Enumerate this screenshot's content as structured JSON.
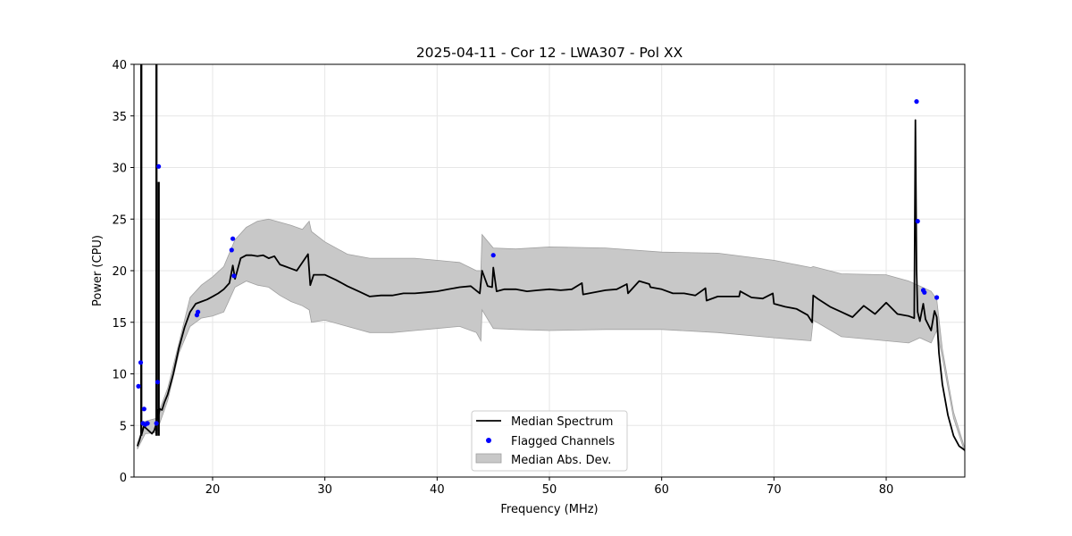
{
  "chart_data": {
    "type": "line",
    "title": "2025-04-11 - Cor 12 - LWA307 - Pol XX",
    "xlabel": "Frequency (MHz)",
    "ylabel": "Power (CPU)",
    "xlim": [
      13.0,
      87.0
    ],
    "ylim": [
      0,
      40
    ],
    "xticks": [
      20,
      30,
      40,
      50,
      60,
      70,
      80
    ],
    "yticks": [
      0,
      5,
      10,
      15,
      20,
      25,
      30,
      35,
      40
    ],
    "grid": true,
    "legend_position": "bottom-center",
    "legend": [
      {
        "label": "Median Spectrum",
        "kind": "line"
      },
      {
        "label": "Flagged Channels",
        "kind": "marker"
      },
      {
        "label": "Median Abs. Dev.",
        "kind": "patch"
      }
    ],
    "colors": {
      "line": "#000000",
      "flagged": "#0000ff",
      "band": "#c8c8c8",
      "band_edge": "#a0a0a0",
      "grid": "#e6e6e6"
    },
    "median_spectrum": {
      "x": [
        13.3,
        13.5,
        13.6,
        13.7,
        13.8,
        13.9,
        14.0,
        14.2,
        14.4,
        14.6,
        14.8,
        15.0,
        15.1,
        15.2,
        15.3,
        15.5,
        15.7,
        16.0,
        16.5,
        17.0,
        17.5,
        18.0,
        18.5,
        19.0,
        19.5,
        20.0,
        20.5,
        21.0,
        21.5,
        21.8,
        22.0,
        22.5,
        23.0,
        23.5,
        24.0,
        24.5,
        25.0,
        25.5,
        26.0,
        26.5,
        27.0,
        27.5,
        28.0,
        28.5,
        28.7,
        29.0,
        30.0,
        31.0,
        32.0,
        33.0,
        34.0,
        35.0,
        36.0,
        37.0,
        38.0,
        39.0,
        40.0,
        41.0,
        42.0,
        43.0,
        43.8,
        44.0,
        44.5,
        44.9,
        45.0,
        45.3,
        46.0,
        47.0,
        48.0,
        49.0,
        50.0,
        51.0,
        52.0,
        52.9,
        53.0,
        54.0,
        55.0,
        56.0,
        56.9,
        57.0,
        58.0,
        58.9,
        59.0,
        60.0,
        61.0,
        62.0,
        63.0,
        63.9,
        64.0,
        65.0,
        66.0,
        66.9,
        67.0,
        68.0,
        69.0,
        69.9,
        70.0,
        71.0,
        72.0,
        73.0,
        73.4,
        73.5,
        74.0,
        75.0,
        76.0,
        77.0,
        78.0,
        79.0,
        80.0,
        81.0,
        82.0,
        82.5,
        82.6,
        82.7,
        82.8,
        83.0,
        83.3,
        83.5,
        84.0,
        84.3,
        84.5,
        84.7,
        85.0,
        85.5,
        86.0,
        86.5,
        87.0
      ],
      "y": [
        3.0,
        3.6,
        4.0,
        4.2,
        4.6,
        5.0,
        4.8,
        4.6,
        4.4,
        4.2,
        4.5,
        5.2,
        6.5,
        6.0,
        6.6,
        6.5,
        7.2,
        8.0,
        10.0,
        12.5,
        14.5,
        16.0,
        16.8,
        17.0,
        17.2,
        17.5,
        17.8,
        18.2,
        18.8,
        20.5,
        19.2,
        21.2,
        21.5,
        21.5,
        21.4,
        21.5,
        21.2,
        21.4,
        20.6,
        20.4,
        20.2,
        20.0,
        20.8,
        21.6,
        18.6,
        19.6,
        19.6,
        19.1,
        18.5,
        18.0,
        17.5,
        17.6,
        17.6,
        17.8,
        17.8,
        17.9,
        18.0,
        18.2,
        18.4,
        18.5,
        17.8,
        20.0,
        18.5,
        18.4,
        20.3,
        18.0,
        18.2,
        18.2,
        18.0,
        18.1,
        18.2,
        18.1,
        18.2,
        18.8,
        17.7,
        17.9,
        18.1,
        18.2,
        18.7,
        17.8,
        19.0,
        18.7,
        18.4,
        18.2,
        17.8,
        17.8,
        17.6,
        18.3,
        17.1,
        17.5,
        17.5,
        17.5,
        18.0,
        17.4,
        17.3,
        17.8,
        16.8,
        16.5,
        16.3,
        15.7,
        15.0,
        17.6,
        17.2,
        16.5,
        16.0,
        15.5,
        16.6,
        15.8,
        16.9,
        15.8,
        15.6,
        15.4,
        34.6,
        20.0,
        16.0,
        15.1,
        16.8,
        15.3,
        14.2,
        16.1,
        15.5,
        12.0,
        9.0,
        6.0,
        4.0,
        3.0,
        2.6
      ]
    },
    "mad_upper": {
      "x": [
        13.3,
        14.0,
        15.0,
        16.0,
        17.0,
        18.0,
        19.0,
        20.0,
        21.0,
        22.0,
        23.0,
        24.0,
        25.0,
        26.0,
        27.0,
        28.0,
        28.6,
        28.8,
        30.0,
        32.0,
        34.0,
        36.0,
        38.0,
        40.0,
        42.0,
        43.5,
        43.9,
        44.0,
        45.0,
        47.0,
        50.0,
        55.0,
        60.0,
        65.0,
        70.0,
        73.3,
        73.5,
        76.0,
        80.0,
        82.0,
        83.0,
        84.0,
        84.5,
        85.0,
        86.0,
        87.0
      ],
      "y": [
        3.3,
        5.4,
        5.7,
        8.6,
        13.0,
        17.4,
        18.6,
        19.4,
        20.4,
        23.0,
        24.2,
        24.8,
        25.0,
        24.7,
        24.4,
        24.0,
        24.8,
        23.8,
        22.8,
        21.6,
        21.2,
        21.2,
        21.2,
        21.0,
        20.8,
        20.0,
        20.0,
        23.5,
        22.2,
        22.1,
        22.3,
        22.2,
        21.8,
        21.7,
        21.0,
        20.3,
        20.4,
        19.7,
        19.6,
        19.0,
        18.5,
        18.0,
        17.2,
        12.4,
        6.3,
        2.8
      ]
    },
    "mad_lower": {
      "x": [
        13.3,
        14.0,
        15.0,
        16.0,
        17.0,
        18.0,
        19.0,
        20.0,
        21.0,
        22.0,
        23.0,
        24.0,
        25.0,
        26.0,
        27.0,
        28.0,
        28.6,
        28.8,
        30.0,
        32.0,
        34.0,
        36.0,
        38.0,
        40.0,
        42.0,
        43.5,
        43.9,
        44.0,
        45.0,
        47.0,
        50.0,
        55.0,
        60.0,
        65.0,
        70.0,
        73.3,
        73.5,
        76.0,
        80.0,
        82.0,
        83.0,
        84.0,
        84.5,
        85.0,
        86.0,
        87.0
      ],
      "y": [
        2.7,
        4.2,
        4.3,
        7.4,
        12.0,
        14.6,
        15.4,
        15.6,
        16.0,
        18.4,
        19.0,
        18.6,
        18.4,
        17.6,
        17.0,
        16.6,
        16.2,
        15.0,
        15.2,
        14.6,
        14.0,
        14.0,
        14.2,
        14.4,
        14.6,
        14.0,
        13.2,
        16.2,
        14.4,
        14.3,
        14.2,
        14.3,
        14.3,
        14.0,
        13.5,
        13.2,
        15.2,
        13.6,
        13.2,
        13.0,
        13.5,
        13.0,
        14.2,
        11.6,
        5.7,
        2.4
      ]
    },
    "flagged_channels": {
      "x": [
        13.4,
        13.6,
        13.8,
        13.9,
        14.0,
        14.2,
        15.0,
        15.1,
        15.2,
        18.6,
        18.7,
        21.7,
        21.8,
        21.9,
        45.0,
        82.7,
        82.8,
        83.3,
        83.4,
        84.5
      ],
      "y": [
        8.8,
        11.1,
        5.2,
        6.6,
        5.1,
        5.2,
        5.2,
        9.2,
        30.1,
        15.7,
        16.0,
        22.0,
        23.1,
        19.5,
        21.5,
        36.4,
        24.8,
        18.1,
        17.9,
        17.4
      ]
    },
    "spikes": [
      {
        "x": 13.65,
        "top": 40.0
      },
      {
        "x": 15.0,
        "top": 40.0
      },
      {
        "x": 15.2,
        "top": 28.6
      }
    ]
  }
}
